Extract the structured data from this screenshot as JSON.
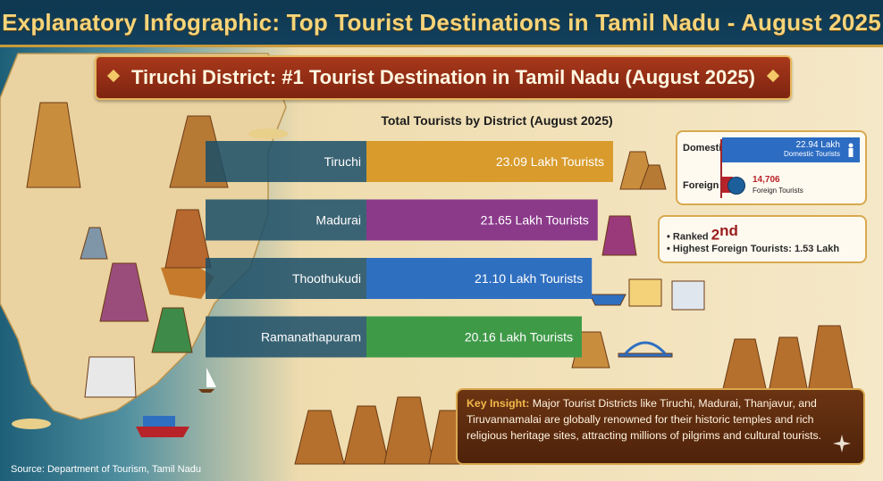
{
  "page_title": "Explanatory Infographic: Top Tourist Destinations in Tamil Nadu - August 2025",
  "ribbon_title": "Tiruchi District: #1 Tourist Destination in Tamil Nadu (August 2025)",
  "chart_data": {
    "type": "bar",
    "orientation": "horizontal",
    "title": "Total Tourists by District (August 2025)",
    "unit": "Lakh Tourists",
    "categories": [
      "Tiruchi",
      "Madurai",
      "Thoothukudi",
      "Ramanathapuram"
    ],
    "values": [
      23.09,
      21.65,
      21.1,
      20.16
    ],
    "value_labels": [
      "23.09 Lakh Tourists",
      "21.65 Lakh Tourists",
      "21.10 Lakh Tourists",
      "20.16 Lakh Tourists"
    ],
    "colors": [
      "#d89b2c",
      "#8b3a8a",
      "#2f6fc0",
      "#3f9a48"
    ],
    "xlim": [
      0,
      23.09
    ],
    "grid": false,
    "legend": "none"
  },
  "tiruchi_breakdown": {
    "domestic_label": "Domestic",
    "domestic_value": "22.94 Lakh",
    "domestic_sub": "Domestic Tourists",
    "foreign_label": "Foreign",
    "foreign_value": "14,706",
    "foreign_sub": "Foreign Tourists"
  },
  "madurai_note": {
    "ranked_prefix": "• Ranked ",
    "rank": "2",
    "rank_suffix": "nd",
    "foreign": "• Highest Foreign Tourists: 1.53 Lakh"
  },
  "insight": {
    "label": "Key Insight:",
    "text": " Major Tourist Districts like Tiruchi, Madurai, Thanjavur, and Tiruvannamalai are globally renowned for their historic temples and rich religious heritage sites, attracting millions of pilgrims and cultural tourists."
  },
  "source": "Source: Department of Tourism, Tamil Nadu",
  "colors": {
    "header_bg": "#12405c",
    "title_gold": "#f6d47a",
    "ribbon": "#8e2c14",
    "insight_bg": "#5a2a0e"
  }
}
